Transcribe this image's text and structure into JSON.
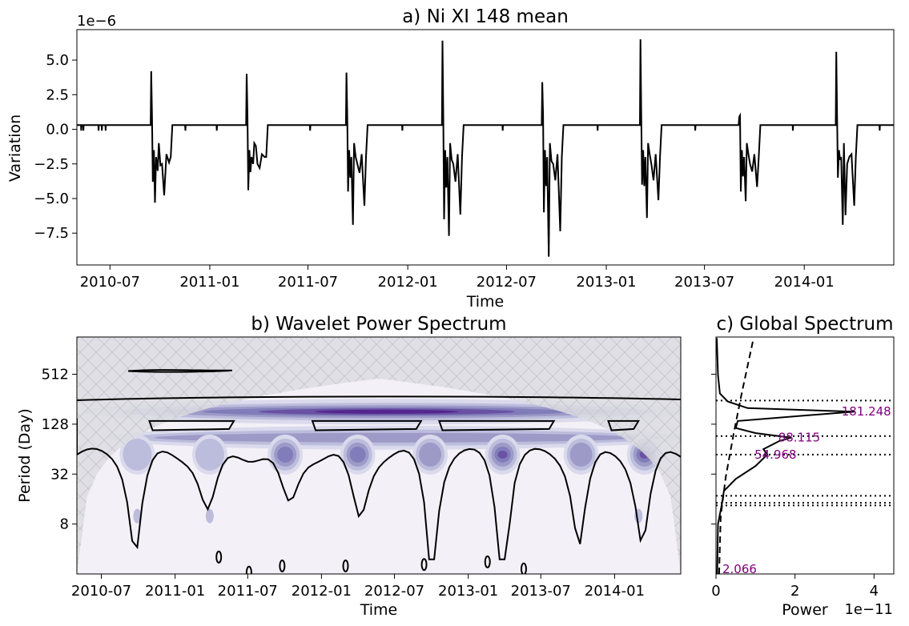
{
  "chart_data": [
    {
      "type": "line",
      "title": "a) Ni XI 148 mean",
      "xlabel": "Time",
      "ylabel": "Variation",
      "y_offset_label": "1e−6",
      "y_scale": 1e-06,
      "x_ticks": [
        "2010-07",
        "2011-01",
        "2011-07",
        "2012-01",
        "2012-07",
        "2013-01",
        "2013-07",
        "2014-01"
      ],
      "xlim": [
        "2010-05-01",
        "2014-06-15"
      ],
      "y_ticks": [
        "5.0",
        "2.5",
        "0.0",
        "−2.5",
        "−5.0",
        "−7.5"
      ],
      "ylim": [
        -9.8,
        7.2
      ],
      "baseline": 0.3,
      "events": [
        {
          "date": "2010-09-15",
          "peak": 4.2,
          "dips": [
            -3.8,
            -3.0,
            -5.3,
            -2.6
          ]
        },
        {
          "date": "2011-03-10",
          "peak": 4.0,
          "dips": [
            -4.4,
            -2.5,
            -3.1,
            -1.2
          ]
        },
        {
          "date": "2011-09-10",
          "peak": 4.1,
          "dips": [
            -4.5,
            -6.9,
            -3.5,
            -2.0
          ]
        },
        {
          "date": "2012-03-05",
          "peak": 6.4,
          "dips": [
            -6.5,
            -7.7,
            -4.2,
            -2.2
          ]
        },
        {
          "date": "2012-09-05",
          "peak": 3.4,
          "dips": [
            -6.0,
            -9.2,
            -4.1,
            -2.3
          ]
        },
        {
          "date": "2013-03-05",
          "peak": 6.5,
          "dips": [
            -4.0,
            -6.4,
            -4.1,
            -1.8
          ]
        },
        {
          "date": "2013-09-03",
          "peak": 0.9,
          "dips": [
            -4.5,
            -5.2,
            -3.4,
            -1.8
          ]
        },
        {
          "date": "2014-03-01",
          "peak": 5.6,
          "dips": [
            -3.5,
            -6.9,
            -2.2,
            -6.2
          ]
        }
      ]
    },
    {
      "type": "heatmap",
      "title": "b) Wavelet Power Spectrum",
      "xlabel": "Time",
      "ylabel": "Period (Day)",
      "x_ticks": [
        "2010-07",
        "2011-01",
        "2011-07",
        "2012-01",
        "2012-07",
        "2013-01",
        "2013-07",
        "2014-01"
      ],
      "xlim": [
        "2010-05-01",
        "2014-06-15"
      ],
      "y_ticks": [
        "512",
        "128",
        "32",
        "8"
      ],
      "y_scale": "log2",
      "ylim_days": [
        2,
        1440
      ],
      "colormap": [
        "#f3f1f7",
        "#dadaec",
        "#bcbddc",
        "#9e9ac8",
        "#807dba",
        "#6a51a3",
        "#54278f"
      ],
      "hatch_color": "#c8c8d0",
      "cone_color": "#e0e0e6"
    },
    {
      "type": "line",
      "title": "c) Global Spectrum",
      "xlabel": "Power",
      "x_offset_label": "1e−11",
      "x_ticks": [
        "0",
        "2",
        "4"
      ],
      "xlim": [
        0,
        4.5
      ],
      "peaks": [
        {
          "period": 181.248,
          "label": "181.248"
        },
        {
          "period": 88.115,
          "label": "88.115"
        },
        {
          "period": 54.968,
          "label": "54.968"
        },
        {
          "period": 2.066,
          "label": "2.066"
        }
      ],
      "dotted_periods": [
        247,
        92,
        54.968,
        17.5,
        14.4,
        13.4
      ]
    }
  ]
}
